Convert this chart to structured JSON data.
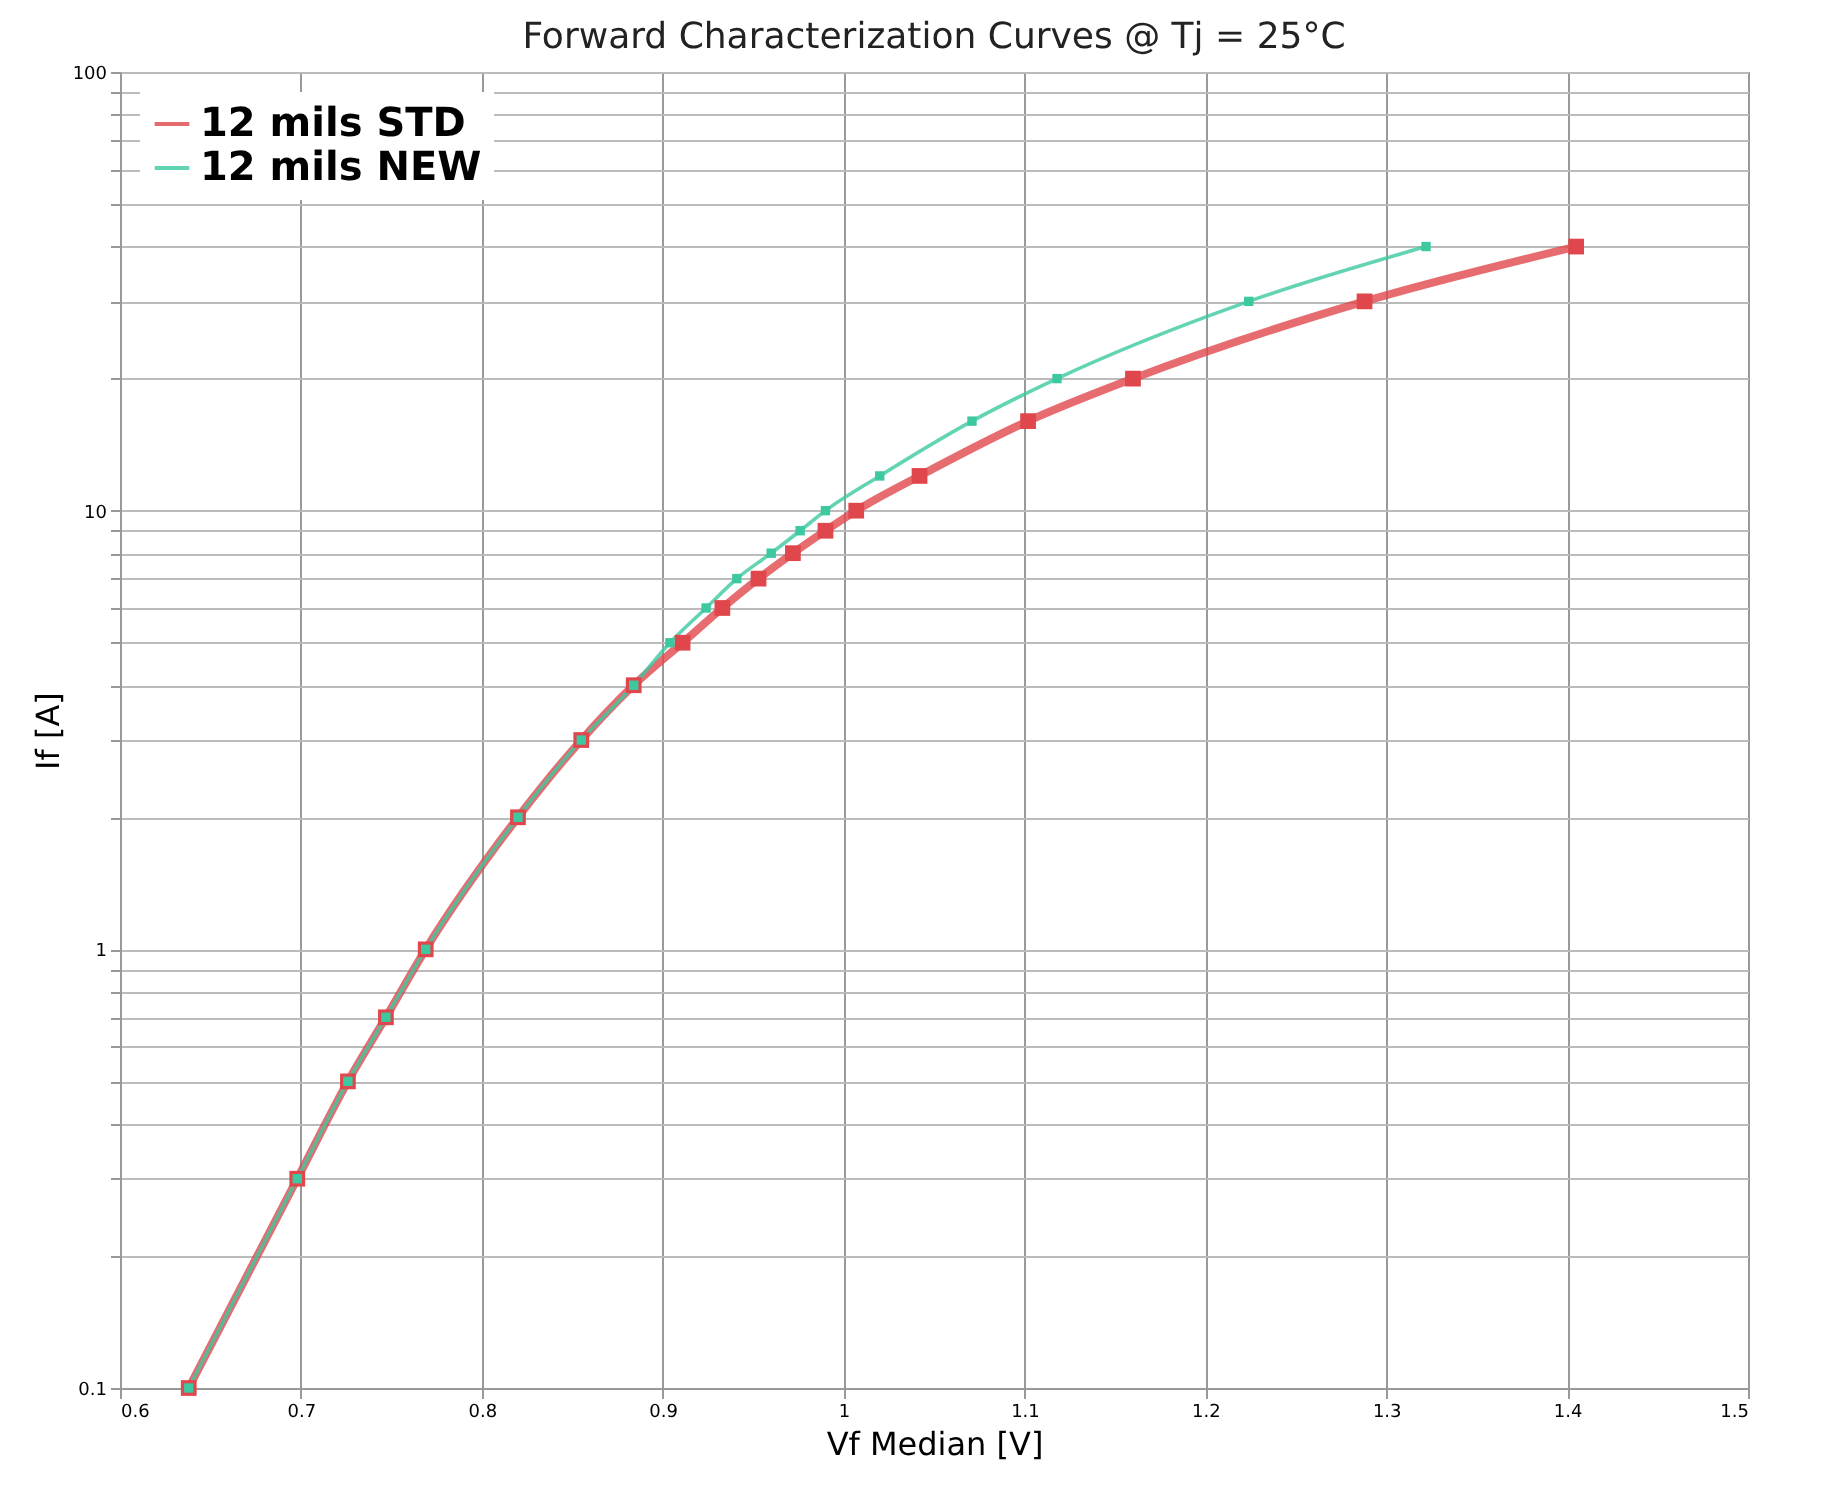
{
  "chart_data": {
    "type": "line",
    "title": "Forward Characterization Curves @ Tj = 25°C",
    "xlabel": "Vf Median [V]",
    "ylabel": "If [A]",
    "series": [
      {
        "name": "12 mils STD",
        "color": "#e0474c",
        "x": [
          0.638,
          0.698,
          0.726,
          0.747,
          0.769,
          0.82,
          0.855,
          0.884,
          0.911,
          0.933,
          0.953,
          0.972,
          0.99,
          1.007,
          1.042,
          1.102,
          1.16,
          1.288,
          1.405
        ],
        "values": [
          0.1,
          0.3,
          0.5,
          0.7,
          1,
          2,
          3,
          4,
          5,
          6,
          7,
          8,
          9,
          10,
          12,
          16,
          20,
          30,
          40
        ]
      },
      {
        "name": "12 mils NEW",
        "color": "#3cc9a0",
        "x": [
          0.638,
          0.698,
          0.726,
          0.747,
          0.769,
          0.82,
          0.855,
          0.884,
          0.904,
          0.924,
          0.941,
          0.96,
          0.976,
          0.99,
          1.02,
          1.071,
          1.118,
          1.224,
          1.322
        ],
        "values": [
          0.1,
          0.3,
          0.5,
          0.7,
          1,
          2,
          3,
          4,
          5,
          6,
          7,
          8,
          9,
          10,
          12,
          16,
          20,
          30,
          40
        ]
      }
    ],
    "xlim": [
      0.6,
      1.5
    ],
    "xticks": [
      0.6,
      0.7,
      0.8,
      0.9,
      1,
      1.1,
      1.2,
      1.3,
      1.4,
      1.5
    ],
    "ylim": [
      0.1,
      100
    ],
    "log": "y",
    "yticks": [
      0.1,
      {
        "value": 0.2,
        "label": null
      },
      {
        "value": 0.3,
        "label": null
      },
      {
        "value": 0.4,
        "label": null
      },
      {
        "value": 0.5,
        "label": null
      },
      {
        "value": 0.6,
        "label": null
      },
      {
        "value": 0.7,
        "label": null
      },
      {
        "value": 0.8,
        "label": null
      },
      {
        "value": 0.9,
        "label": null
      },
      1,
      {
        "value": 2,
        "label": null
      },
      {
        "value": 3,
        "label": null
      },
      {
        "value": 4,
        "label": null
      },
      {
        "value": 5,
        "label": null
      },
      {
        "value": 6,
        "label": null
      },
      {
        "value": 7,
        "label": null
      },
      {
        "value": 8,
        "label": null
      },
      {
        "value": 9,
        "label": null
      },
      10,
      {
        "value": 20,
        "label": null
      },
      {
        "value": 30,
        "label": null
      },
      {
        "value": 40,
        "label": null
      },
      {
        "value": 50,
        "label": null
      },
      {
        "value": 60,
        "label": null
      },
      {
        "value": 70,
        "label": null
      },
      {
        "value": 80,
        "label": null
      },
      {
        "value": 90,
        "label": null
      },
      100
    ],
    "grid": true,
    "legend": "top left",
    "marker": "square",
    "line_style": "solid"
  }
}
